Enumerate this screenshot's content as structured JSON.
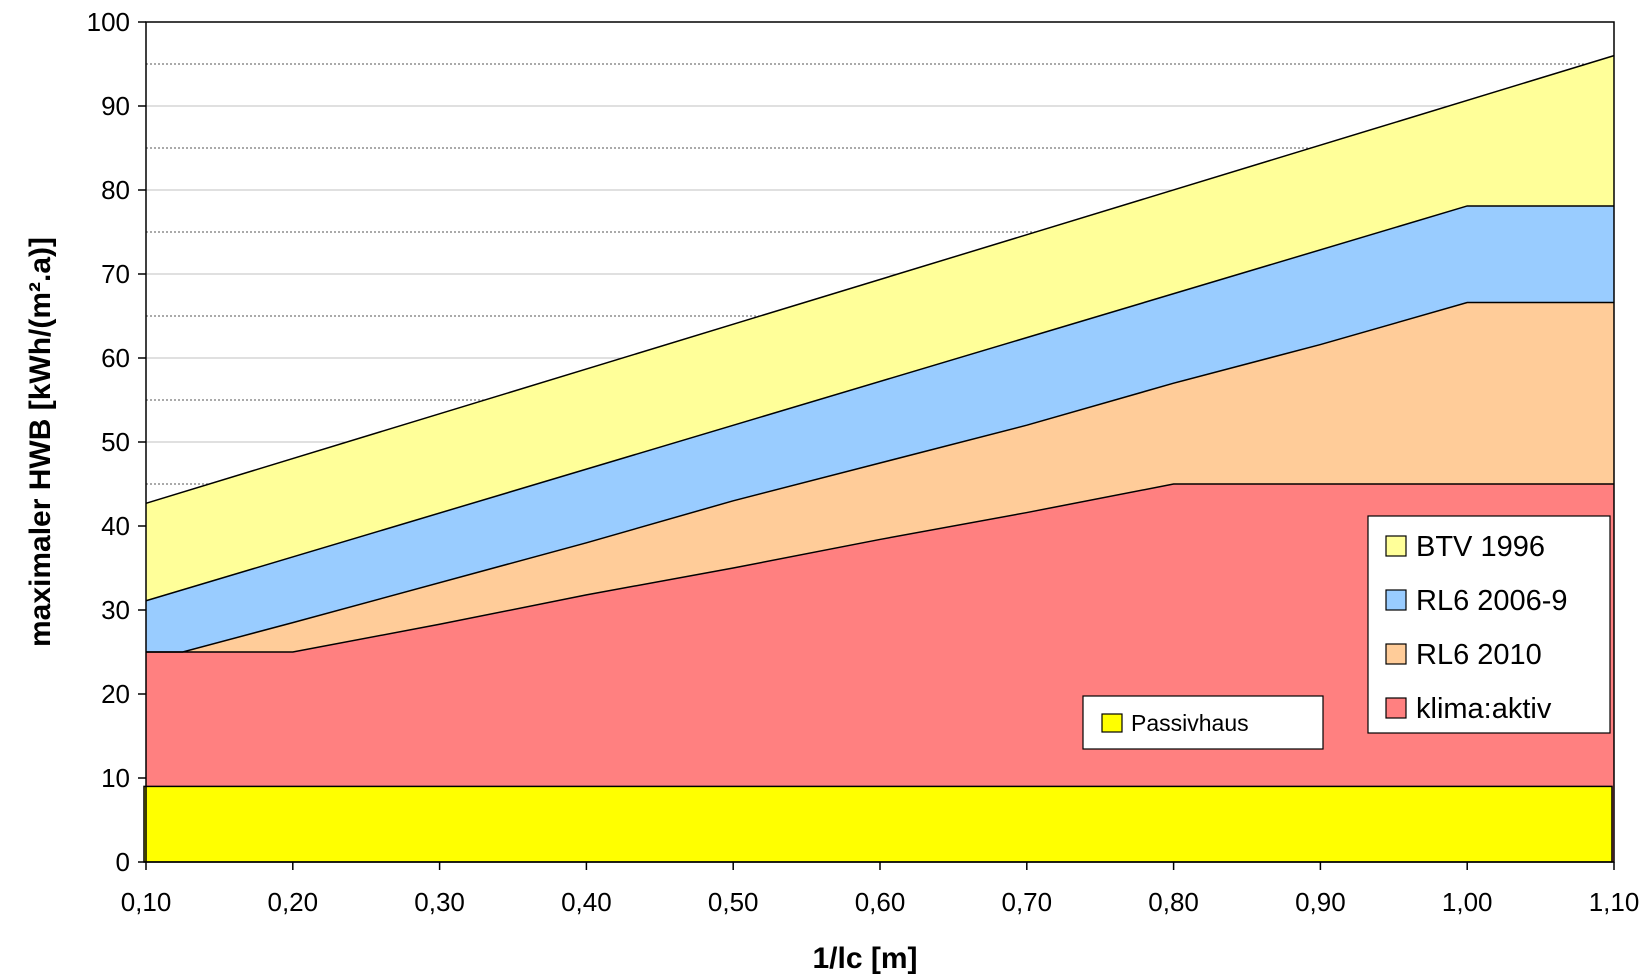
{
  "chart_data": {
    "type": "area",
    "title": "",
    "xlabel": "1/lc [m]",
    "ylabel": "maximaler HWB [kWh/(m².a)]",
    "xlim": [
      0.1,
      1.1
    ],
    "ylim": [
      0,
      100
    ],
    "x_ticks": [
      "0,10",
      "0,20",
      "0,30",
      "0,40",
      "0,50",
      "0,60",
      "0,70",
      "0,80",
      "0,90",
      "1,00",
      "1,10"
    ],
    "y_ticks": [
      "0",
      "10",
      "20",
      "30",
      "40",
      "50",
      "60",
      "70",
      "80",
      "90",
      "100"
    ],
    "grid": "horizontal dotted lines at 45, 55, 65, 75, 85, 95",
    "series": [
      {
        "name": "BTV 1996",
        "color": "#ffff99",
        "x": [
          0.1,
          1.1
        ],
        "y": [
          42.7,
          96.0
        ]
      },
      {
        "name": "RL6 2006-9",
        "color": "#99ccff",
        "x": [
          0.1,
          1.0,
          1.1
        ],
        "y": [
          31.1,
          78.1,
          78.1
        ]
      },
      {
        "name": "RL6 2010",
        "color": "#ffcc99",
        "x": [
          0.1,
          0.125,
          0.2,
          0.4,
          0.5,
          0.6,
          0.7,
          0.8,
          0.9,
          1.0,
          1.1
        ],
        "y": [
          25.0,
          25.0,
          28.5,
          38.0,
          43.0,
          47.5,
          52.0,
          57.0,
          61.6,
          66.6,
          66.6
        ]
      },
      {
        "name": "klima:aktiv",
        "color": "#ff8080",
        "x": [
          0.1,
          0.2,
          0.3,
          0.4,
          0.5,
          0.6,
          0.7,
          0.8,
          0.9,
          1.0,
          1.1
        ],
        "y": [
          25.0,
          25.0,
          28.3,
          31.8,
          35.0,
          38.4,
          41.6,
          45.0,
          45.0,
          45.0,
          45.0
        ]
      },
      {
        "name": "Passivhaus",
        "color": "#ffff00",
        "x": [
          0.1,
          1.1
        ],
        "y": [
          9.0,
          9.0
        ]
      }
    ],
    "legend_main": [
      "BTV 1996",
      "RL6 2006-9",
      "RL6 2010",
      "klima:aktiv"
    ],
    "legend_main_position": "right",
    "legend_secondary": [
      "Passivhaus"
    ],
    "legend_secondary_position": "bottom-right"
  }
}
